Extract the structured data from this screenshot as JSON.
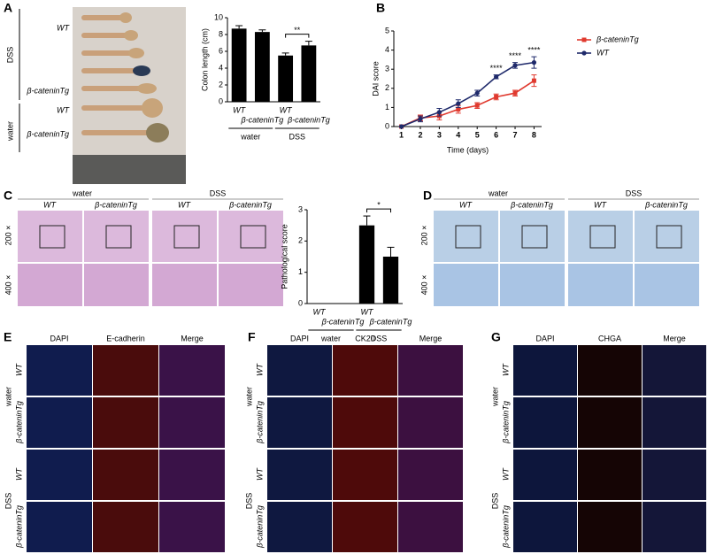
{
  "chart_data": [
    {
      "type": "bar",
      "ylabel": "Colon length (cm)",
      "categories": [
        "WT",
        "β-cateninTg",
        "WT",
        "β-cateninTg"
      ],
      "values": [
        8.7,
        8.3,
        5.5,
        6.7
      ],
      "errors": [
        0.35,
        0.25,
        0.3,
        0.5
      ],
      "color": "#000000",
      "ylim": [
        0,
        10
      ],
      "yticks": [
        0,
        2,
        4,
        6,
        8,
        10
      ],
      "group_labels": [
        "water",
        "DSS"
      ],
      "annotations": [
        "**"
      ]
    },
    {
      "type": "line",
      "xlabel": "Time (days)",
      "ylabel": "DAI score",
      "x": [
        1,
        2,
        3,
        4,
        5,
        6,
        7,
        8
      ],
      "series": [
        {
          "name": "β-cateninTg",
          "color": "#e03a2f",
          "marker": "square",
          "values": [
            0,
            0.45,
            0.55,
            0.9,
            1.1,
            1.55,
            1.75,
            2.4
          ],
          "errors": [
            0,
            0.15,
            0.2,
            0.2,
            0.15,
            0.15,
            0.15,
            0.3
          ]
        },
        {
          "name": "WT",
          "color": "#1f2a6b",
          "marker": "circle",
          "values": [
            0,
            0.4,
            0.75,
            1.2,
            1.75,
            2.6,
            3.2,
            3.35
          ],
          "errors": [
            0,
            0.15,
            0.2,
            0.2,
            0.15,
            0.1,
            0.15,
            0.3
          ]
        }
      ],
      "xlim": [
        0.6,
        8.4
      ],
      "xticks": [
        1,
        2,
        3,
        4,
        5,
        6,
        7,
        8
      ],
      "ylim": [
        0,
        5
      ],
      "yticks": [
        0,
        1,
        2,
        3,
        4,
        5
      ],
      "legend": "top-right",
      "annotations": [
        {
          "text": "****",
          "x": 6
        },
        {
          "text": "****",
          "x": 7
        },
        {
          "text": "****",
          "x": 8
        }
      ]
    },
    {
      "type": "bar",
      "ylabel": "Pathological score",
      "categories": [
        "WT",
        "β-cateninTg",
        "WT",
        "β-cateninTg"
      ],
      "values": [
        0,
        0,
        2.5,
        1.5
      ],
      "errors": [
        0,
        0,
        0.3,
        0.3
      ],
      "color": "#000000",
      "ylim": [
        0,
        3
      ],
      "yticks": [
        0,
        1,
        2,
        3
      ],
      "group_labels": [
        "water",
        "DSS"
      ],
      "annotations": [
        "*"
      ]
    }
  ],
  "figure": {
    "panel_labels": [
      "A",
      "B",
      "C",
      "D",
      "E",
      "F",
      "G"
    ],
    "panel_a": {
      "groups": [
        "DSS",
        "water"
      ],
      "rows": [
        "WT",
        "β-cateninTg",
        "WT",
        "β-cateninTg"
      ]
    },
    "panel_c": {
      "groups": [
        "water",
        "DSS"
      ],
      "columns": [
        "WT",
        "β-cateninTg",
        "WT",
        "β-cateninTg"
      ],
      "magnifications": [
        "200 ×",
        "400 ×"
      ]
    },
    "panel_d": {
      "groups": [
        "water",
        "DSS"
      ],
      "columns": [
        "WT",
        "β-cateninTg",
        "WT",
        "β-cateninTg"
      ],
      "magnifications": [
        "200 ×",
        "400 ×"
      ]
    },
    "panel_e": {
      "channels": [
        "DAPI",
        "E-cadherin",
        "Merge"
      ],
      "rows": [
        "WT",
        "β-cateninTg",
        "WT",
        "β-cateninTg"
      ],
      "groups": [
        "water",
        "DSS"
      ]
    },
    "panel_f": {
      "channels": [
        "DAPI",
        "CK20",
        "Merge"
      ],
      "rows": [
        "WT",
        "β-cateninTg",
        "WT",
        "β-cateninTg"
      ],
      "groups": [
        "water",
        "DSS"
      ]
    },
    "panel_g": {
      "channels": [
        "DAPI",
        "CHGA",
        "Merge"
      ],
      "rows": [
        "WT",
        "β-cateninTg",
        "WT",
        "β-cateninTg"
      ],
      "groups": [
        "water",
        "DSS"
      ]
    }
  }
}
